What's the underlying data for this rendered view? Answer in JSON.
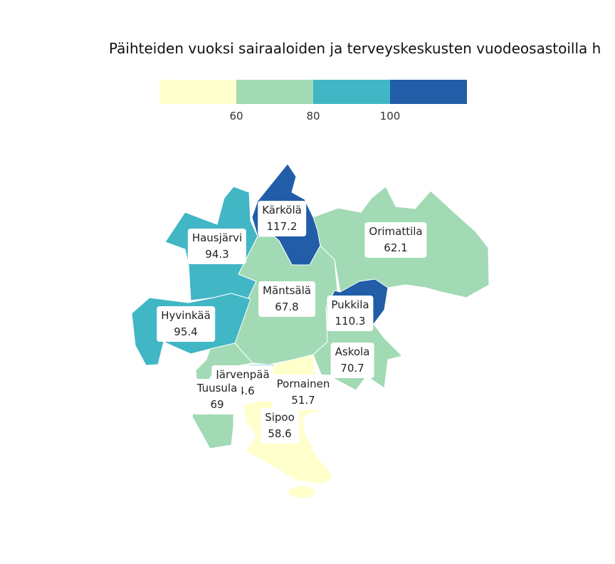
{
  "title": "Päihteiden vuoksi sairaaloiden ja terveyskeskusten vuodeosastoilla h",
  "legend": {
    "ticks": [
      "60",
      "80",
      "100"
    ],
    "colors": [
      "#ffffcc",
      "#a1dab4",
      "#41b6c4",
      "#225ea8"
    ]
  },
  "regions": [
    {
      "name": "Kärkölä",
      "value": "117.2"
    },
    {
      "name": "Hausjärvi",
      "value": "94.3"
    },
    {
      "name": "Orimattila",
      "value": "62.1"
    },
    {
      "name": "Mäntsälä",
      "value": "67.8"
    },
    {
      "name": "Hyvinkää",
      "value": "95.4"
    },
    {
      "name": "Pukkila",
      "value": "110.3"
    },
    {
      "name": "Askola",
      "value": "70.7"
    },
    {
      "name": "Järvenpää",
      "value": "94.6"
    },
    {
      "name": "Tuusula",
      "value": "69"
    },
    {
      "name": "Pornainen",
      "value": "51.7"
    },
    {
      "name": "Sipoo",
      "value": "58.6"
    }
  ]
}
